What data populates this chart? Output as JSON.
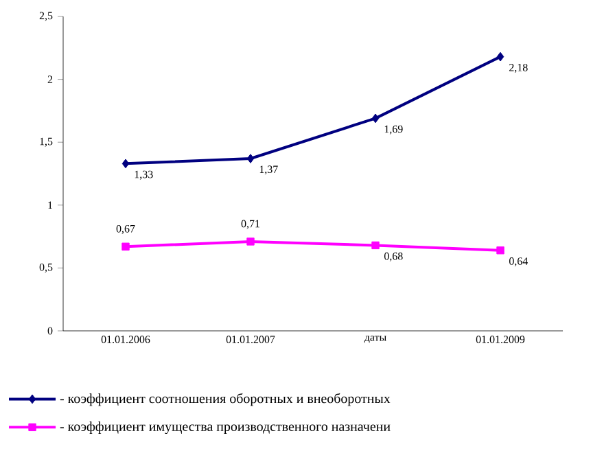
{
  "chart_data": {
    "type": "line",
    "categories": [
      "01.01.2006",
      "01.01.2007",
      "даты",
      "01.01.2009"
    ],
    "ylim": [
      0,
      2.5
    ],
    "yticks": [
      {
        "value": 0,
        "label": "0"
      },
      {
        "value": 0.5,
        "label": "0,5"
      },
      {
        "value": 1,
        "label": "1"
      },
      {
        "value": 1.5,
        "label": "1,5"
      },
      {
        "value": 2,
        "label": "2"
      },
      {
        "value": 2.5,
        "label": "2,5"
      }
    ],
    "grid": false,
    "legend": "bottom",
    "series": [
      {
        "name": "- коэффициент соотношения оборотных и внеоборотных",
        "color": "#000080",
        "marker": "diamond",
        "values": [
          1.33,
          1.37,
          1.69,
          2.18
        ],
        "value_labels": [
          "1,33",
          "1,37",
          "1,69",
          "2,18"
        ]
      },
      {
        "name": "- коэффициент имущества производственного назначени",
        "color": "#ff00ff",
        "marker": "square",
        "values": [
          0.67,
          0.71,
          0.68,
          0.64
        ],
        "value_labels": [
          "0,67",
          "0,71",
          "0,68",
          "0,64"
        ]
      }
    ]
  }
}
